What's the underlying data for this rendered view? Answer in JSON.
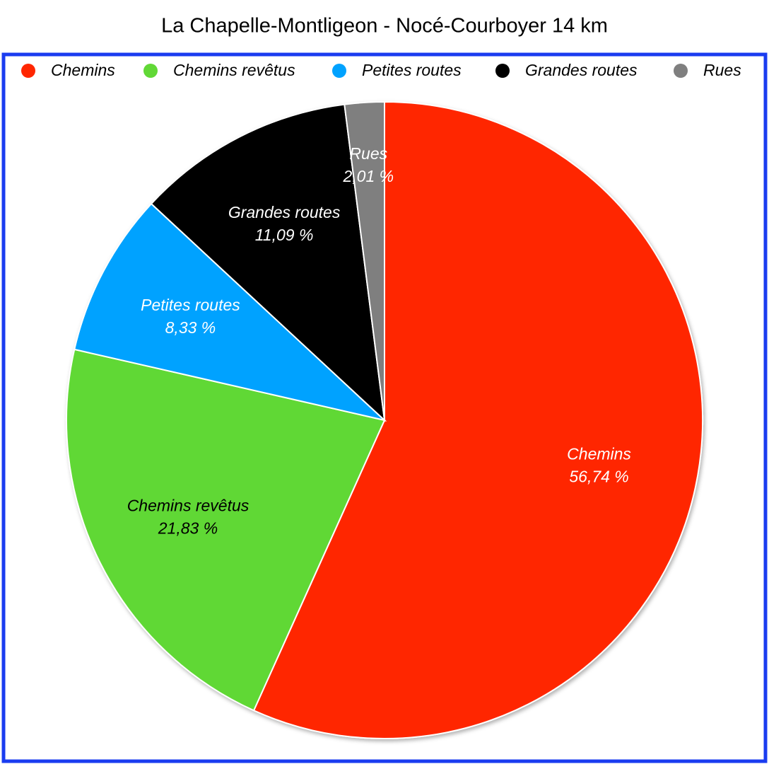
{
  "chart_data": {
    "type": "pie",
    "title": "La Chapelle-Montligeon - Nocé-Courboyer 14 km",
    "categories": [
      "Chemins",
      "Chemins revêtus",
      "Petites routes",
      "Grandes routes",
      "Rues"
    ],
    "values": [
      56.74,
      21.83,
      8.33,
      11.09,
      2.01
    ],
    "value_labels": [
      "56,74 %",
      "21,83 %",
      "8,33 %",
      "11,09 %",
      "2,01 %"
    ],
    "colors": [
      "#ff2600",
      "#61d836",
      "#00a2ff",
      "#000000",
      "#7f7f7f"
    ],
    "legend": "top"
  }
}
